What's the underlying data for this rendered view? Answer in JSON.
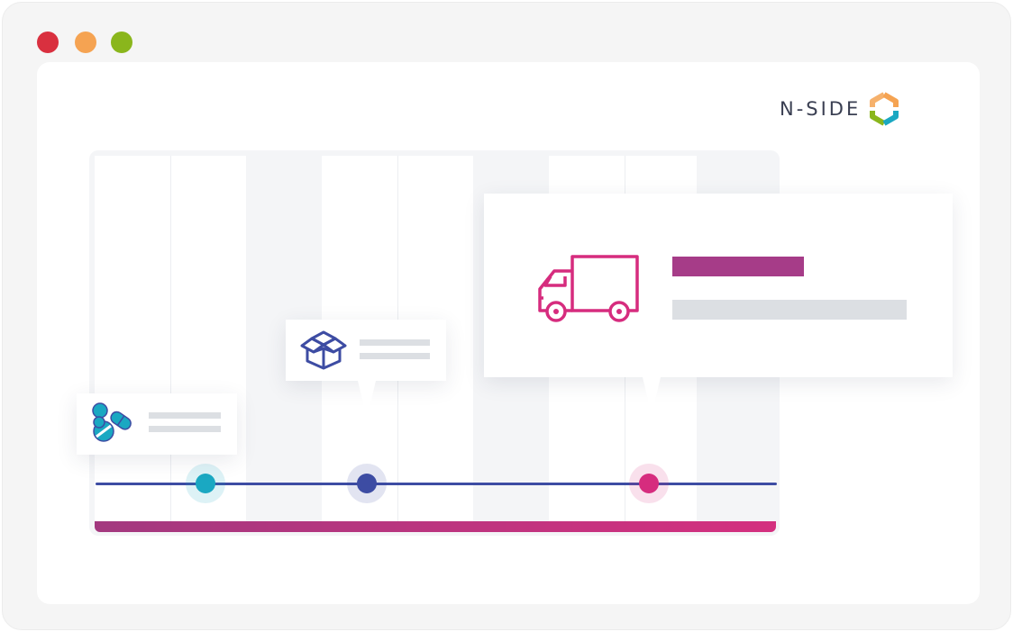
{
  "window": {
    "controls": [
      "close",
      "minimize",
      "maximize"
    ],
    "colors": {
      "close": "#d9303f",
      "minimize": "#f5a352",
      "maximize": "#8ab61c"
    }
  },
  "logo": {
    "text": "N-SIDE",
    "mark_icon": "hexagon-logo-icon",
    "colors": [
      "#f5a352",
      "#8ab61c",
      "#1aa8c2"
    ]
  },
  "timeline": {
    "line_color": "#3d4ca3",
    "progress_colors": [
      "#a3397f",
      "#d4307f"
    ],
    "events": [
      {
        "name": "medication",
        "icon": "pills-icon",
        "color": "#1aa8c2"
      },
      {
        "name": "packaging",
        "icon": "box-icon",
        "color": "#3d4ca3"
      },
      {
        "name": "shipping",
        "icon": "truck-icon",
        "color": "#d62c7e"
      }
    ]
  }
}
